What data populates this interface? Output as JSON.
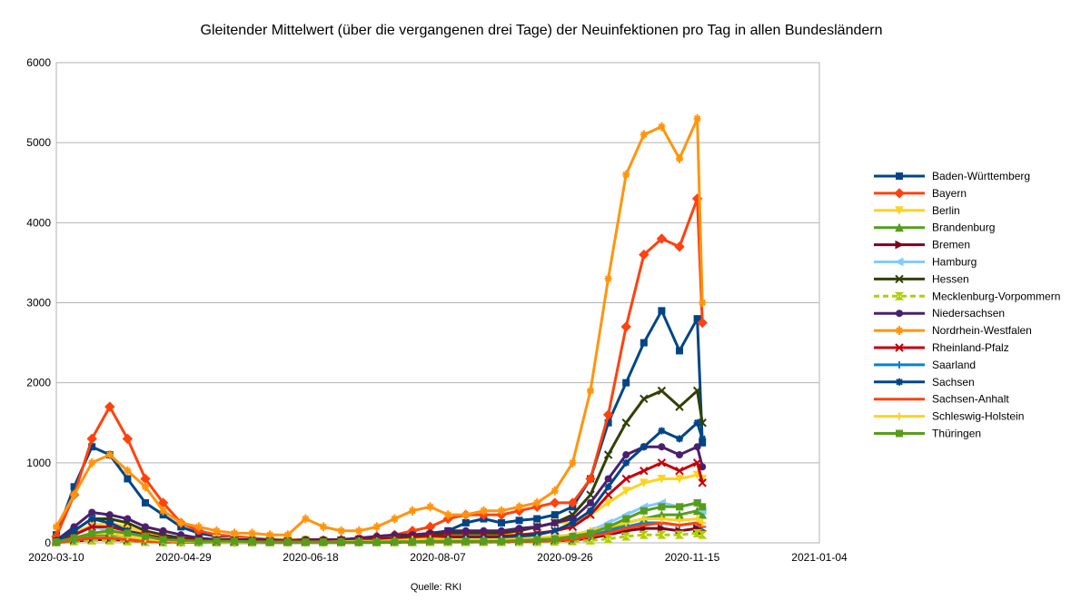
{
  "chart_data": {
    "type": "line",
    "title": "Gleitender Mittelwert (über die vergangenen drei Tage) der Neuinfektionen pro Tag in allen Bundesländern",
    "source": "Quelle: RKI",
    "xlabel": "",
    "ylabel": "",
    "xlim": [
      "2020-03-10",
      "2021-01-04"
    ],
    "ylim": [
      0,
      6000
    ],
    "x_ticks": [
      "2020-03-10",
      "2020-04-29",
      "2020-06-18",
      "2020-08-07",
      "2020-09-26",
      "2020-11-15",
      "2021-01-04"
    ],
    "y_ticks": [
      "0",
      "1000",
      "2000",
      "3000",
      "4000",
      "5000",
      "6000"
    ],
    "grid": "horizontal",
    "legend_position": "right",
    "x": [
      "2020-03-10",
      "2020-03-17",
      "2020-03-24",
      "2020-03-31",
      "2020-04-07",
      "2020-04-14",
      "2020-04-21",
      "2020-04-28",
      "2020-05-05",
      "2020-05-12",
      "2020-05-19",
      "2020-05-26",
      "2020-06-02",
      "2020-06-09",
      "2020-06-16",
      "2020-06-23",
      "2020-06-30",
      "2020-07-07",
      "2020-07-14",
      "2020-07-21",
      "2020-07-28",
      "2020-08-04",
      "2020-08-11",
      "2020-08-18",
      "2020-08-25",
      "2020-09-01",
      "2020-09-08",
      "2020-09-15",
      "2020-09-22",
      "2020-09-29",
      "2020-10-06",
      "2020-10-13",
      "2020-10-20",
      "2020-10-27",
      "2020-11-03",
      "2020-11-10",
      "2020-11-17",
      "2020-11-19"
    ],
    "series": [
      {
        "name": "Baden-Württemberg",
        "color": "#004586",
        "marker": "square",
        "values": [
          100,
          700,
          1200,
          1100,
          800,
          500,
          350,
          200,
          120,
          80,
          60,
          40,
          30,
          25,
          30,
          30,
          30,
          40,
          50,
          60,
          80,
          100,
          150,
          250,
          300,
          250,
          280,
          300,
          350,
          450,
          800,
          1500,
          2000,
          2500,
          2900,
          2400,
          2800,
          1250
        ]
      },
      {
        "name": "Bayern",
        "color": "#ff420e",
        "marker": "diamond",
        "values": [
          80,
          600,
          1300,
          1700,
          1300,
          800,
          500,
          250,
          150,
          100,
          80,
          60,
          40,
          30,
          30,
          30,
          40,
          50,
          80,
          100,
          150,
          200,
          300,
          350,
          350,
          350,
          400,
          450,
          500,
          500,
          800,
          1600,
          2700,
          3600,
          3800,
          3700,
          4300,
          2750
        ]
      },
      {
        "name": "Berlin",
        "color": "#ffd320",
        "marker": "triangle-down",
        "values": [
          20,
          120,
          220,
          250,
          200,
          120,
          80,
          50,
          40,
          50,
          50,
          40,
          40,
          40,
          40,
          30,
          30,
          40,
          50,
          60,
          80,
          100,
          80,
          80,
          80,
          100,
          150,
          200,
          250,
          250,
          350,
          500,
          650,
          750,
          800,
          800,
          850,
          800
        ]
      },
      {
        "name": "Brandenburg",
        "color": "#579d1c",
        "marker": "triangle-up",
        "values": [
          10,
          50,
          100,
          100,
          80,
          50,
          30,
          20,
          10,
          10,
          10,
          5,
          5,
          5,
          5,
          5,
          5,
          5,
          10,
          10,
          10,
          20,
          20,
          20,
          20,
          20,
          30,
          30,
          40,
          60,
          100,
          150,
          250,
          300,
          350,
          350,
          400,
          350
        ]
      },
      {
        "name": "Bremen",
        "color": "#7e0021",
        "marker": "triangle-right",
        "values": [
          5,
          20,
          40,
          40,
          30,
          20,
          15,
          10,
          10,
          10,
          5,
          5,
          5,
          5,
          5,
          5,
          5,
          5,
          5,
          5,
          10,
          10,
          10,
          10,
          10,
          10,
          15,
          20,
          25,
          30,
          60,
          100,
          150,
          180,
          180,
          150,
          180,
          150
        ]
      },
      {
        "name": "Hamburg",
        "color": "#83caff",
        "marker": "triangle-left",
        "values": [
          20,
          100,
          200,
          150,
          100,
          50,
          30,
          20,
          10,
          10,
          10,
          5,
          5,
          5,
          5,
          5,
          5,
          10,
          10,
          15,
          20,
          30,
          40,
          40,
          40,
          40,
          50,
          60,
          80,
          100,
          150,
          250,
          350,
          450,
          500,
          450,
          500,
          400
        ]
      },
      {
        "name": "Hessen",
        "color": "#314004",
        "marker": "x",
        "values": [
          20,
          150,
          300,
          300,
          250,
          150,
          100,
          60,
          40,
          30,
          30,
          20,
          20,
          20,
          20,
          20,
          30,
          40,
          50,
          60,
          80,
          100,
          120,
          120,
          120,
          120,
          150,
          200,
          250,
          350,
          600,
          1100,
          1500,
          1800,
          1900,
          1700,
          1900,
          1500
        ]
      },
      {
        "name": "Mecklenburg-Vorpommern",
        "color": "#aecf00",
        "marker": "hourglass",
        "dash": true,
        "values": [
          5,
          20,
          30,
          30,
          20,
          10,
          5,
          5,
          5,
          5,
          5,
          5,
          5,
          5,
          5,
          5,
          5,
          5,
          5,
          5,
          5,
          10,
          10,
          10,
          10,
          10,
          10,
          10,
          15,
          20,
          30,
          50,
          80,
          100,
          100,
          100,
          120,
          100
        ]
      },
      {
        "name": "Niedersachsen",
        "color": "#4b1f6f",
        "marker": "circle",
        "values": [
          30,
          200,
          380,
          350,
          300,
          200,
          150,
          100,
          60,
          40,
          40,
          40,
          40,
          30,
          40,
          40,
          40,
          60,
          80,
          100,
          100,
          120,
          150,
          150,
          150,
          150,
          180,
          200,
          250,
          300,
          500,
          800,
          1100,
          1200,
          1200,
          1100,
          1200,
          950
        ]
      },
      {
        "name": "Nordrhein-Westfalen",
        "color": "#ff950e",
        "marker": "star",
        "values": [
          200,
          600,
          1000,
          1100,
          900,
          700,
          400,
          250,
          200,
          150,
          120,
          120,
          100,
          100,
          300,
          200,
          150,
          150,
          200,
          300,
          400,
          450,
          350,
          350,
          400,
          400,
          450,
          500,
          650,
          1000,
          1900,
          3300,
          4600,
          5100,
          5200,
          4800,
          5300,
          3000
        ]
      },
      {
        "name": "Rheinland-Pfalz",
        "color": "#c5000b",
        "marker": "x",
        "values": [
          20,
          100,
          200,
          200,
          150,
          100,
          60,
          40,
          30,
          20,
          20,
          20,
          20,
          20,
          20,
          20,
          20,
          30,
          40,
          50,
          60,
          80,
          80,
          80,
          80,
          80,
          100,
          120,
          150,
          200,
          350,
          600,
          800,
          900,
          1000,
          900,
          1000,
          750
        ]
      },
      {
        "name": "Saarland",
        "color": "#0084d1",
        "marker": "plus",
        "values": [
          5,
          30,
          60,
          60,
          40,
          20,
          10,
          10,
          5,
          5,
          5,
          5,
          5,
          5,
          5,
          5,
          5,
          5,
          5,
          10,
          10,
          15,
          15,
          15,
          15,
          15,
          20,
          20,
          30,
          40,
          80,
          150,
          200,
          250,
          250,
          220,
          250,
          200
        ]
      },
      {
        "name": "Sachsen",
        "color": "#004586",
        "marker": "asterisk",
        "values": [
          20,
          150,
          300,
          250,
          150,
          80,
          50,
          30,
          20,
          10,
          10,
          10,
          10,
          10,
          10,
          10,
          10,
          15,
          20,
          20,
          30,
          40,
          50,
          60,
          60,
          60,
          80,
          100,
          150,
          250,
          400,
          700,
          1000,
          1200,
          1400,
          1300,
          1500,
          1300
        ]
      },
      {
        "name": "Sachsen-Anhalt",
        "color": "#ff420e",
        "marker": "dash",
        "values": [
          5,
          30,
          60,
          60,
          40,
          20,
          10,
          10,
          10,
          5,
          5,
          5,
          5,
          5,
          5,
          5,
          5,
          5,
          10,
          10,
          10,
          10,
          10,
          15,
          15,
          15,
          20,
          20,
          30,
          40,
          80,
          120,
          180,
          220,
          250,
          220,
          250,
          200
        ]
      },
      {
        "name": "Schleswig-Holstein",
        "color": "#ffd320",
        "marker": "plus",
        "values": [
          10,
          60,
          120,
          120,
          80,
          50,
          30,
          20,
          15,
          10,
          10,
          10,
          10,
          10,
          10,
          10,
          15,
          20,
          20,
          30,
          40,
          50,
          40,
          40,
          40,
          40,
          50,
          60,
          80,
          100,
          150,
          200,
          250,
          300,
          300,
          280,
          300,
          250
        ]
      },
      {
        "name": "Thüringen",
        "color": "#579d1c",
        "marker": "square",
        "values": [
          10,
          60,
          120,
          150,
          120,
          80,
          40,
          30,
          20,
          20,
          20,
          15,
          10,
          10,
          10,
          10,
          10,
          10,
          10,
          15,
          15,
          20,
          20,
          20,
          20,
          20,
          30,
          40,
          50,
          80,
          120,
          200,
          300,
          400,
          450,
          450,
          500,
          450
        ]
      }
    ]
  }
}
